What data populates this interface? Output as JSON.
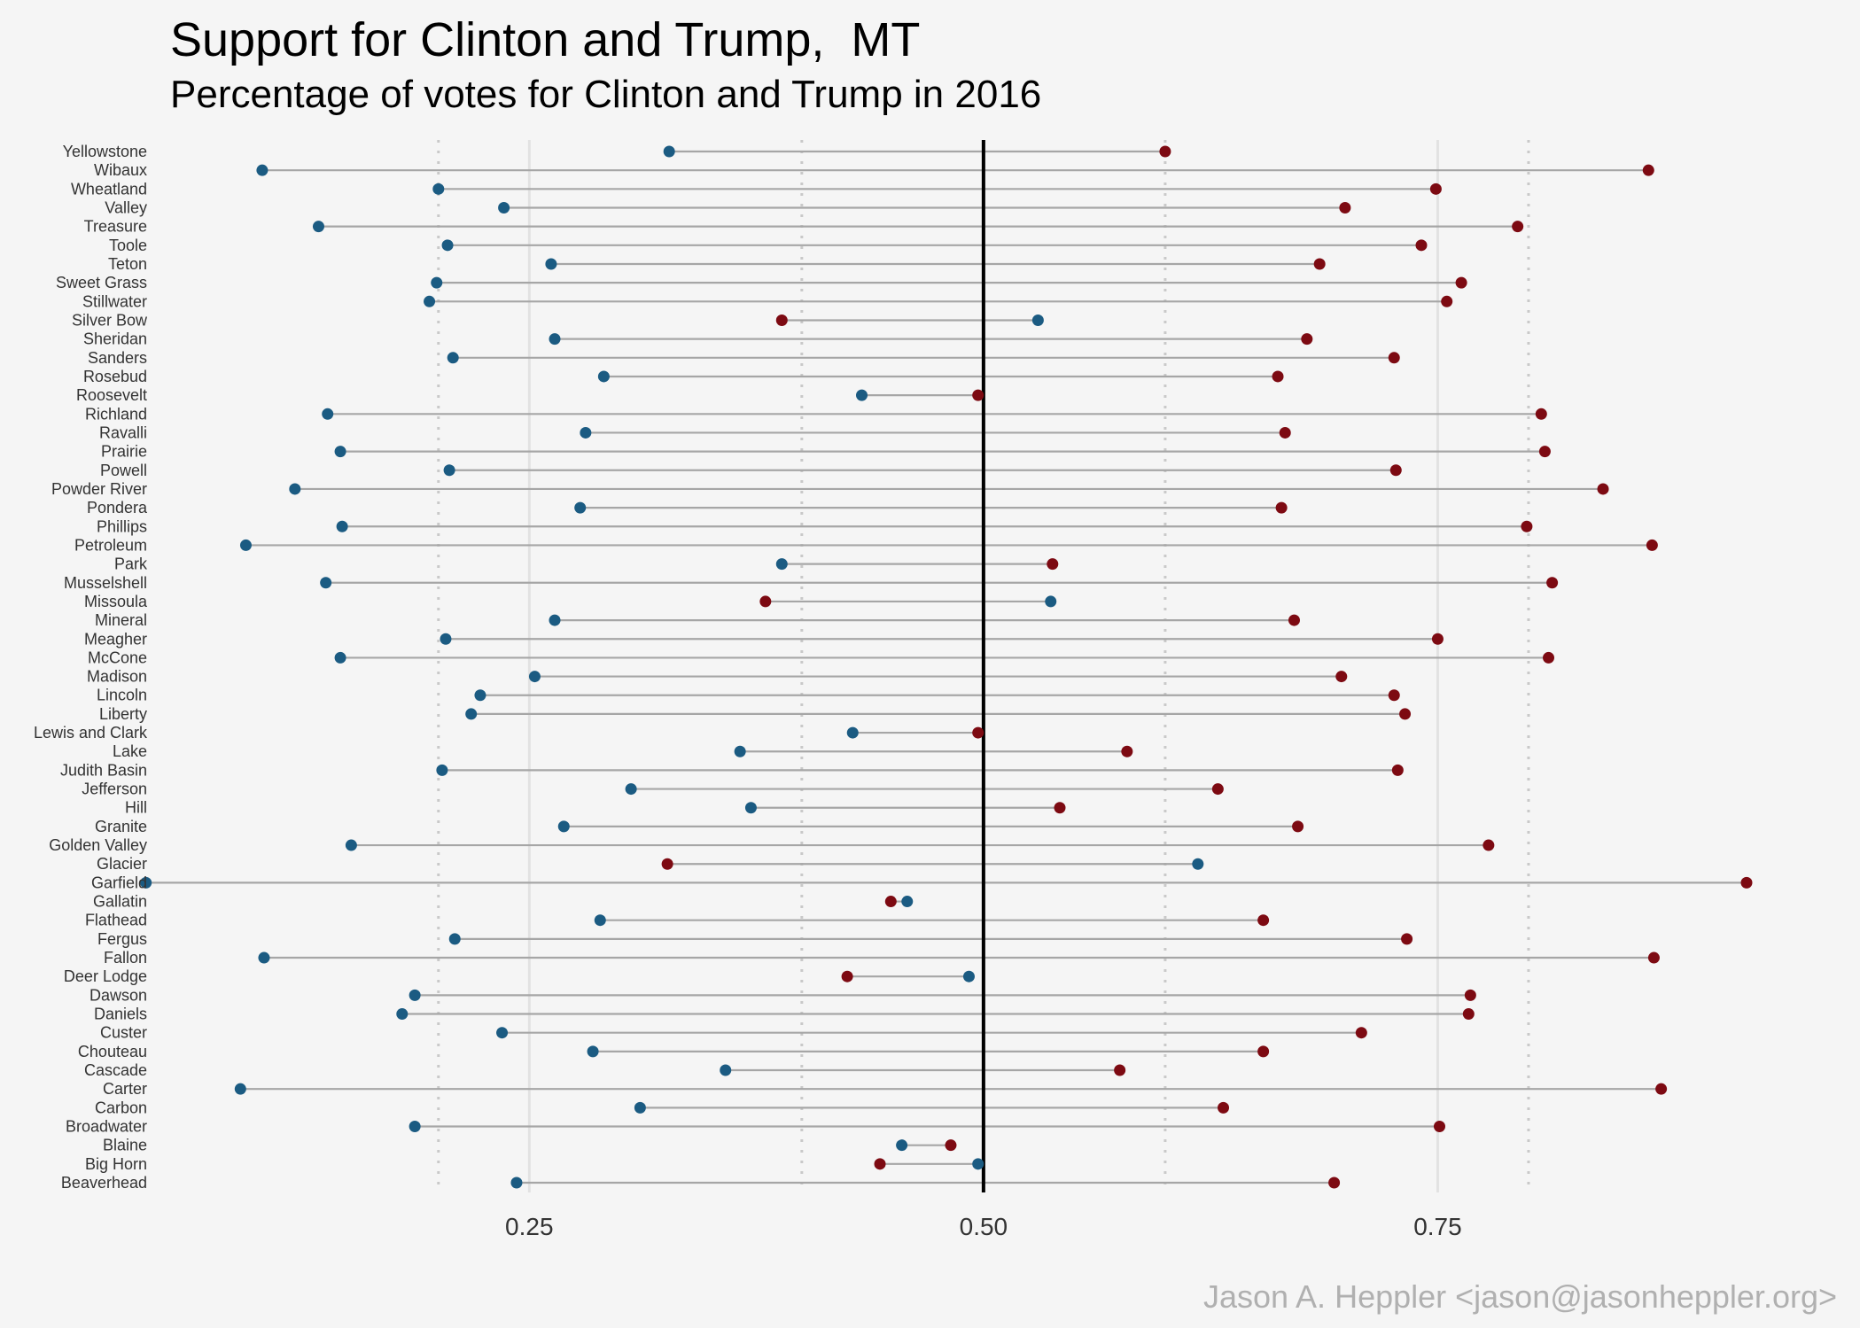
{
  "chart_data": {
    "type": "dumbbell",
    "title": "Support for Clinton and Trump,  MT",
    "subtitle": "Percentage of votes for Clinton and Trump in 2016",
    "caption": "Jason A. Heppler <jason@jasonheppler.org>",
    "xlabel": "",
    "ylabel": "",
    "xlim": [
      0.045,
      0.94
    ],
    "x_ticks": [
      0.25,
      0.5,
      0.75
    ],
    "x_tick_labels": [
      "0.25",
      "0.50",
      "0.75"
    ],
    "reference_line": 0.5,
    "dotted_lines": [
      0.2,
      0.4,
      0.6,
      0.8
    ],
    "grid": true,
    "colors": {
      "clinton": "#1b5b82",
      "trump": "#7d0a12",
      "segment": "#a6a6a6",
      "reference": "#000000",
      "background": "#f5f5f5"
    },
    "counties": [
      "Yellowstone",
      "Wibaux",
      "Wheatland",
      "Valley",
      "Treasure",
      "Toole",
      "Teton",
      "Sweet Grass",
      "Stillwater",
      "Silver Bow",
      "Sheridan",
      "Sanders",
      "Rosebud",
      "Roosevelt",
      "Richland",
      "Ravalli",
      "Prairie",
      "Powell",
      "Powder River",
      "Pondera",
      "Phillips",
      "Petroleum",
      "Park",
      "Musselshell",
      "Missoula",
      "Mineral",
      "Meagher",
      "McCone",
      "Madison",
      "Lincoln",
      "Liberty",
      "Lewis and Clark",
      "Lake",
      "Judith Basin",
      "Jefferson",
      "Hill",
      "Granite",
      "Golden Valley",
      "Glacier",
      "Garfield",
      "Gallatin",
      "Flathead",
      "Fergus",
      "Fallon",
      "Deer Lodge",
      "Dawson",
      "Daniels",
      "Custer",
      "Chouteau",
      "Cascade",
      "Carter",
      "Carbon",
      "Broadwater",
      "Blaine",
      "Big Horn",
      "Beaverhead"
    ],
    "series": [
      {
        "name": "Clinton",
        "values": [
          0.327,
          0.103,
          0.2,
          0.236,
          0.134,
          0.205,
          0.262,
          0.199,
          0.195,
          0.53,
          0.264,
          0.208,
          0.291,
          0.433,
          0.139,
          0.281,
          0.146,
          0.206,
          0.121,
          0.278,
          0.147,
          0.094,
          0.389,
          0.138,
          0.537,
          0.264,
          0.204,
          0.146,
          0.253,
          0.223,
          0.218,
          0.428,
          0.366,
          0.202,
          0.306,
          0.372,
          0.269,
          0.152,
          0.618,
          0.039,
          0.458,
          0.289,
          0.209,
          0.104,
          0.492,
          0.187,
          0.18,
          0.235,
          0.285,
          0.358,
          0.091,
          0.311,
          0.187,
          0.455,
          0.497,
          0.243
        ]
      },
      {
        "name": "Trump",
        "values": [
          0.6,
          0.866,
          0.749,
          0.699,
          0.794,
          0.741,
          0.685,
          0.763,
          0.755,
          0.389,
          0.678,
          0.726,
          0.662,
          0.497,
          0.807,
          0.666,
          0.809,
          0.727,
          0.841,
          0.664,
          0.799,
          0.868,
          0.538,
          0.813,
          0.38,
          0.671,
          0.75,
          0.811,
          0.697,
          0.726,
          0.732,
          0.497,
          0.579,
          0.728,
          0.629,
          0.542,
          0.673,
          0.778,
          0.326,
          0.92,
          0.449,
          0.654,
          0.733,
          0.869,
          0.425,
          0.768,
          0.767,
          0.708,
          0.654,
          0.575,
          0.873,
          0.632,
          0.751,
          0.482,
          0.443,
          0.693
        ]
      }
    ]
  }
}
